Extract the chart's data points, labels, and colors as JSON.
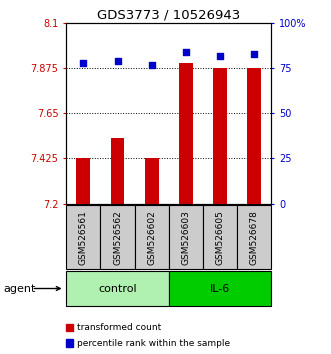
{
  "title": "GDS3773 / 10526943",
  "samples": [
    "GSM526561",
    "GSM526562",
    "GSM526602",
    "GSM526603",
    "GSM526605",
    "GSM526678"
  ],
  "transformed_counts": [
    7.425,
    7.525,
    7.425,
    7.9,
    7.875,
    7.875
  ],
  "percentile_ranks": [
    78,
    79,
    77,
    84,
    82,
    83
  ],
  "ylim_left": [
    7.2,
    8.1
  ],
  "ylim_right": [
    0,
    100
  ],
  "yticks_left": [
    7.2,
    7.425,
    7.65,
    7.875,
    8.1
  ],
  "ytick_labels_left": [
    "7.2",
    "7.425",
    "7.65",
    "7.875",
    "8.1"
  ],
  "yticks_right": [
    0,
    25,
    50,
    75,
    100
  ],
  "ytick_labels_right": [
    "0",
    "25",
    "50",
    "75",
    "100%"
  ],
  "hlines": [
    7.425,
    7.65,
    7.875
  ],
  "bar_color": "#CC0000",
  "dot_color": "#0000CC",
  "bar_width": 0.4,
  "legend_bar_label": "transformed count",
  "legend_dot_label": "percentile rank within the sample",
  "agent_label": "agent",
  "background_color": "#ffffff",
  "gray_bg": "#cccccc",
  "control_color": "#b0f0b0",
  "il6_color": "#00cc00"
}
